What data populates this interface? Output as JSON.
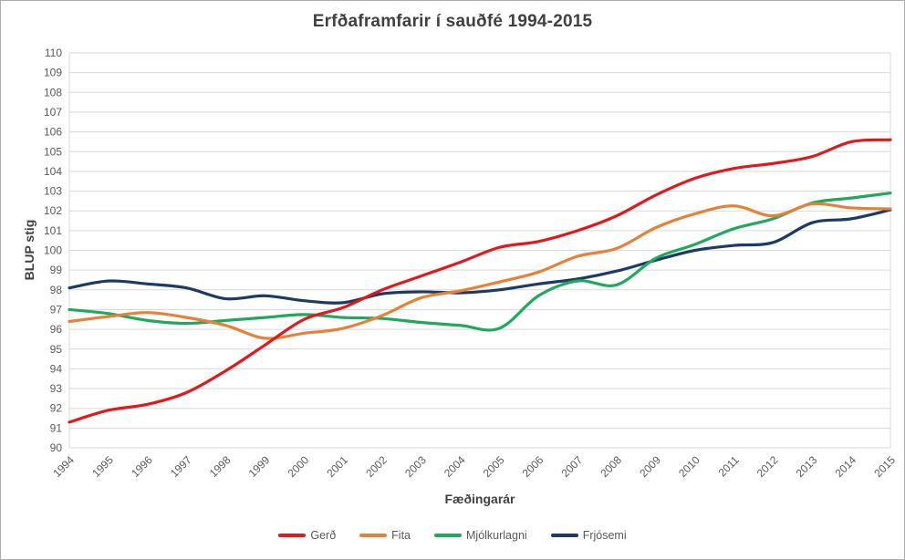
{
  "title": "Erfðaframfarir í sauðfé 1994-2015",
  "colors": {
    "title_text": "#404040",
    "axis_title_text": "#404040",
    "tick_text": "#595959",
    "gridline": "#d9d9d9",
    "plot_border": "#d9d9d9",
    "series_gerd": "#e2191c",
    "series_fita": "#e58138",
    "series_mjolkurlagni": "#1ea95c",
    "series_frjosemi": "#1b3a66"
  },
  "chart_data": {
    "type": "line",
    "title": "Erfðaframfarir í sauðfé 1994-2015",
    "xlabel": "Fæðingarár",
    "ylabel": "BLUP stig",
    "ylim": [
      90,
      110
    ],
    "y_tick_step": 1,
    "grid": "horizontal",
    "legend_position": "bottom",
    "smooth_lines": true,
    "categories": [
      "1994",
      "1995",
      "1996",
      "1997",
      "1998",
      "1999",
      "2000",
      "2001",
      "2002",
      "2003",
      "2004",
      "2005",
      "2006",
      "2007",
      "2008",
      "2009",
      "2010",
      "2011",
      "2012",
      "2013",
      "2014",
      "2015"
    ],
    "series": [
      {
        "name": "Gerð",
        "color": "#e2191c",
        "values": [
          91.3,
          91.9,
          92.2,
          92.8,
          93.9,
          95.2,
          96.5,
          97.1,
          98.0,
          98.7,
          99.4,
          100.15,
          100.45,
          101.0,
          101.75,
          102.8,
          103.65,
          104.15,
          104.4,
          104.75,
          105.5,
          105.6
        ]
      },
      {
        "name": "Fita",
        "color": "#e58138",
        "values": [
          96.4,
          96.65,
          96.85,
          96.6,
          96.2,
          95.55,
          95.8,
          96.05,
          96.7,
          97.6,
          97.95,
          98.4,
          98.9,
          99.7,
          100.1,
          101.15,
          101.85,
          102.25,
          101.75,
          102.35,
          102.15,
          102.1
        ]
      },
      {
        "name": "Mjólkurlagni",
        "color": "#1ea95c",
        "values": [
          97.0,
          96.8,
          96.45,
          96.3,
          96.45,
          96.6,
          96.75,
          96.6,
          96.55,
          96.35,
          96.2,
          96.05,
          97.7,
          98.45,
          98.25,
          99.6,
          100.3,
          101.1,
          101.6,
          102.4,
          102.65,
          102.9
        ]
      },
      {
        "name": "Frjósemi",
        "color": "#1b3a66",
        "values": [
          98.1,
          98.45,
          98.3,
          98.1,
          97.55,
          97.7,
          97.45,
          97.35,
          97.8,
          97.9,
          97.85,
          98.0,
          98.3,
          98.55,
          98.95,
          99.5,
          100.0,
          100.25,
          100.4,
          101.4,
          101.6,
          102.05
        ]
      }
    ]
  }
}
